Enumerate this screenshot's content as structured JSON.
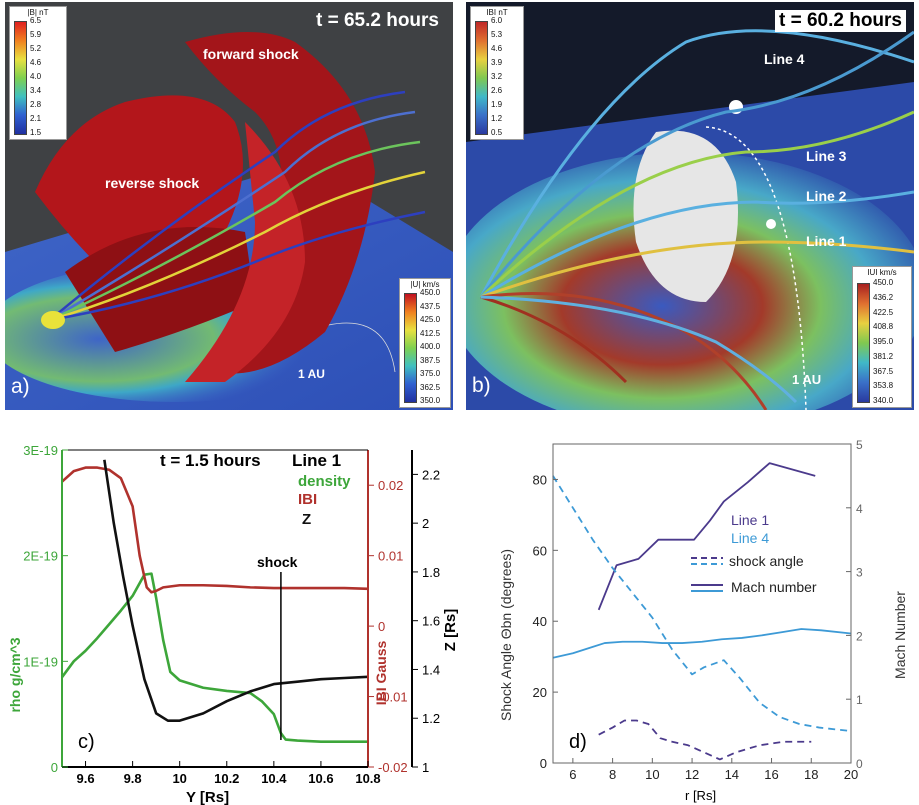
{
  "panel_a": {
    "time_label": "t = 65.2 hours",
    "panel_label": "a)",
    "forward_shock_label": "forward shock",
    "reverse_shock_label": "reverse shock",
    "au_label": "1 AU",
    "colorbar_b": {
      "title": "|B| nT",
      "ticks": [
        "6.5",
        "5.9",
        "5.2",
        "4.6",
        "4.0",
        "3.4",
        "2.8",
        "2.1",
        "1.5"
      ]
    },
    "colorbar_u": {
      "title": "|U| km/s",
      "ticks": [
        "450.0",
        "437.5",
        "425.0",
        "412.5",
        "400.0",
        "387.5",
        "375.0",
        "362.5",
        "350.0"
      ]
    }
  },
  "panel_b": {
    "time_label": "t = 60.2 hours",
    "panel_label": "b)",
    "au_label": "1 AU",
    "line_labels": [
      "Line 4",
      "Line 3",
      "Line 2",
      "Line 1"
    ],
    "colorbar_b": {
      "title": "IBI nT",
      "ticks": [
        "6.0",
        "5.3",
        "4.6",
        "3.9",
        "3.2",
        "2.6",
        "1.9",
        "1.2",
        "0.5"
      ]
    },
    "colorbar_u": {
      "title": "IUI km/s",
      "ticks": [
        "450.0",
        "436.2",
        "422.5",
        "408.8",
        "395.0",
        "381.2",
        "367.5",
        "353.8",
        "340.0"
      ]
    }
  },
  "panel_c": {
    "panel_label": "c)",
    "time_label": "t = 1.5 hours",
    "line_label": "Line 1",
    "legend": {
      "density": "density",
      "b": "IBI",
      "z": "Z"
    },
    "shock_label": "shock",
    "xlabel": "Y [Rs]",
    "y1label": "rho g/cm^3",
    "y2label": "IBI Gauss",
    "y3label": "Z [Rs]",
    "xticks": [
      "9.6",
      "9.8",
      "10",
      "10.2",
      "10.4",
      "10.6",
      "10.8"
    ],
    "y1ticks": [
      "0",
      "1E-19",
      "2E-19",
      "3E-19"
    ],
    "y2ticks": [
      "-0.02",
      "-0.01",
      "0",
      "0.01",
      "0.02"
    ],
    "y3ticks": [
      "1",
      "1.2",
      "1.4",
      "1.6",
      "1.8",
      "2",
      "2.2"
    ],
    "colors": {
      "density": "#3da63a",
      "b": "#b0322d",
      "z": "#111111"
    }
  },
  "panel_d": {
    "panel_label": "d)",
    "xlabel": "r [Rs]",
    "ylabel_left": "Shock Angle Θbn (degrees)",
    "ylabel_right": "Mach Number",
    "xticks": [
      "6",
      "8",
      "10",
      "12",
      "14",
      "16",
      "18",
      "20"
    ],
    "yticks_left": [
      "0",
      "20",
      "40",
      "60",
      "80"
    ],
    "yticks_right": [
      "0",
      "1",
      "2",
      "3",
      "4",
      "5"
    ],
    "legend": {
      "line1": "Line 1",
      "line4": "Line 4",
      "shock_angle": "shock angle",
      "mach": "Mach number"
    },
    "colors": {
      "line1": "#4b3a8c",
      "line4": "#3d9ad6"
    }
  },
  "chart_data": [
    {
      "type": "line",
      "panel": "c)",
      "title": "t = 1.5 hours  Line 1",
      "xlabel": "Y [Rs]",
      "xlim": [
        9.5,
        10.8
      ],
      "series": [
        {
          "name": "density",
          "axis": "rho g/cm^3",
          "ylim": [
            0,
            3e-19
          ],
          "x": [
            9.5,
            9.55,
            9.6,
            9.65,
            9.7,
            9.75,
            9.8,
            9.85,
            9.88,
            9.9,
            9.93,
            9.96,
            10.0,
            10.1,
            10.2,
            10.3,
            10.35,
            10.4,
            10.43,
            10.45,
            10.5,
            10.6,
            10.7,
            10.8
          ],
          "y": [
            8.5e-20,
            1e-19,
            1.1e-19,
            1.22e-19,
            1.35e-19,
            1.48e-19,
            1.62e-19,
            1.82e-19,
            1.83e-19,
            1.6e-19,
            1.2e-19,
            9e-20,
            8.2e-20,
            7.5e-20,
            7.2e-20,
            7e-20,
            6.2e-20,
            5e-20,
            3.2e-20,
            2.6e-20,
            2.5e-20,
            2.4e-20,
            2.4e-20,
            2.4e-20
          ]
        },
        {
          "name": "IBI",
          "axis": "IBI Gauss",
          "ylim": [
            -0.02,
            0.025
          ],
          "x": [
            9.5,
            9.55,
            9.6,
            9.65,
            9.7,
            9.75,
            9.8,
            9.83,
            9.86,
            9.88,
            9.9,
            9.93,
            10.0,
            10.1,
            10.2,
            10.3,
            10.4,
            10.5,
            10.6,
            10.7,
            10.8
          ],
          "y": [
            0.0205,
            0.022,
            0.0225,
            0.0225,
            0.0222,
            0.021,
            0.017,
            0.01,
            0.0055,
            0.0048,
            0.005,
            0.0055,
            0.0058,
            0.0058,
            0.0057,
            0.0055,
            0.0054,
            0.0054,
            0.0054,
            0.0054,
            0.0053
          ]
        },
        {
          "name": "Z",
          "axis": "Z [Rs]",
          "ylim": [
            1.0,
            2.3
          ],
          "x": [
            9.68,
            9.72,
            9.76,
            9.8,
            9.85,
            9.9,
            9.95,
            10.0,
            10.1,
            10.2,
            10.3,
            10.4,
            10.5,
            10.6,
            10.7,
            10.8
          ],
          "y": [
            2.26,
            2.0,
            1.78,
            1.58,
            1.36,
            1.22,
            1.19,
            1.19,
            1.22,
            1.27,
            1.31,
            1.34,
            1.35,
            1.36,
            1.365,
            1.37
          ]
        }
      ],
      "annotations": [
        {
          "text": "shock",
          "x": 10.43
        }
      ]
    },
    {
      "type": "line",
      "panel": "d)",
      "xlabel": "r [Rs]",
      "ylabel": "Shock Angle Θbn (degrees)",
      "y2label": "Mach Number",
      "xlim": [
        5,
        20
      ],
      "ylim": [
        0,
        90
      ],
      "y2lim": [
        0,
        5
      ],
      "series": [
        {
          "name": "Line 1",
          "quantity": "Mach number",
          "axis": "right",
          "x": [
            7.3,
            8.2,
            9.3,
            10.3,
            11.2,
            12.1,
            12.9,
            13.6,
            14.8,
            15.9,
            18.2
          ],
          "y": [
            2.4,
            3.1,
            3.2,
            3.5,
            3.5,
            3.5,
            3.8,
            4.1,
            4.4,
            4.7,
            4.5
          ]
        },
        {
          "name": "Line 4",
          "quantity": "Mach number",
          "axis": "right",
          "x": [
            5,
            6,
            7,
            7.6,
            8.5,
            9.5,
            10.5,
            11.5,
            12.5,
            13.5,
            14.5,
            15.5,
            16.5,
            17.5,
            18.5,
            20
          ],
          "y": [
            1.65,
            1.72,
            1.82,
            1.88,
            1.9,
            1.9,
            1.88,
            1.88,
            1.9,
            1.94,
            1.96,
            2.0,
            2.05,
            2.1,
            2.08,
            2.03
          ]
        },
        {
          "name": "Line 1",
          "quantity": "shock angle",
          "axis": "left",
          "x": [
            7.3,
            8.0,
            8.6,
            9.2,
            9.8,
            10.4,
            11.0,
            11.8,
            12.6,
            13.4,
            14.2,
            15.4,
            16.6,
            18.0
          ],
          "y": [
            8,
            10,
            12,
            12,
            11,
            7,
            6,
            5,
            3,
            1,
            3,
            5,
            6,
            6
          ]
        },
        {
          "name": "Line 4",
          "quantity": "shock angle",
          "axis": "left",
          "x": [
            5,
            6,
            7,
            8,
            9,
            10,
            11,
            12,
            12.6,
            13.6,
            14.4,
            15.4,
            16.4,
            17.4,
            18.4,
            20
          ],
          "y": [
            81,
            72,
            63,
            55,
            48,
            41,
            32,
            25,
            27,
            29,
            24,
            17,
            13,
            11,
            10,
            9
          ]
        }
      ]
    }
  ]
}
